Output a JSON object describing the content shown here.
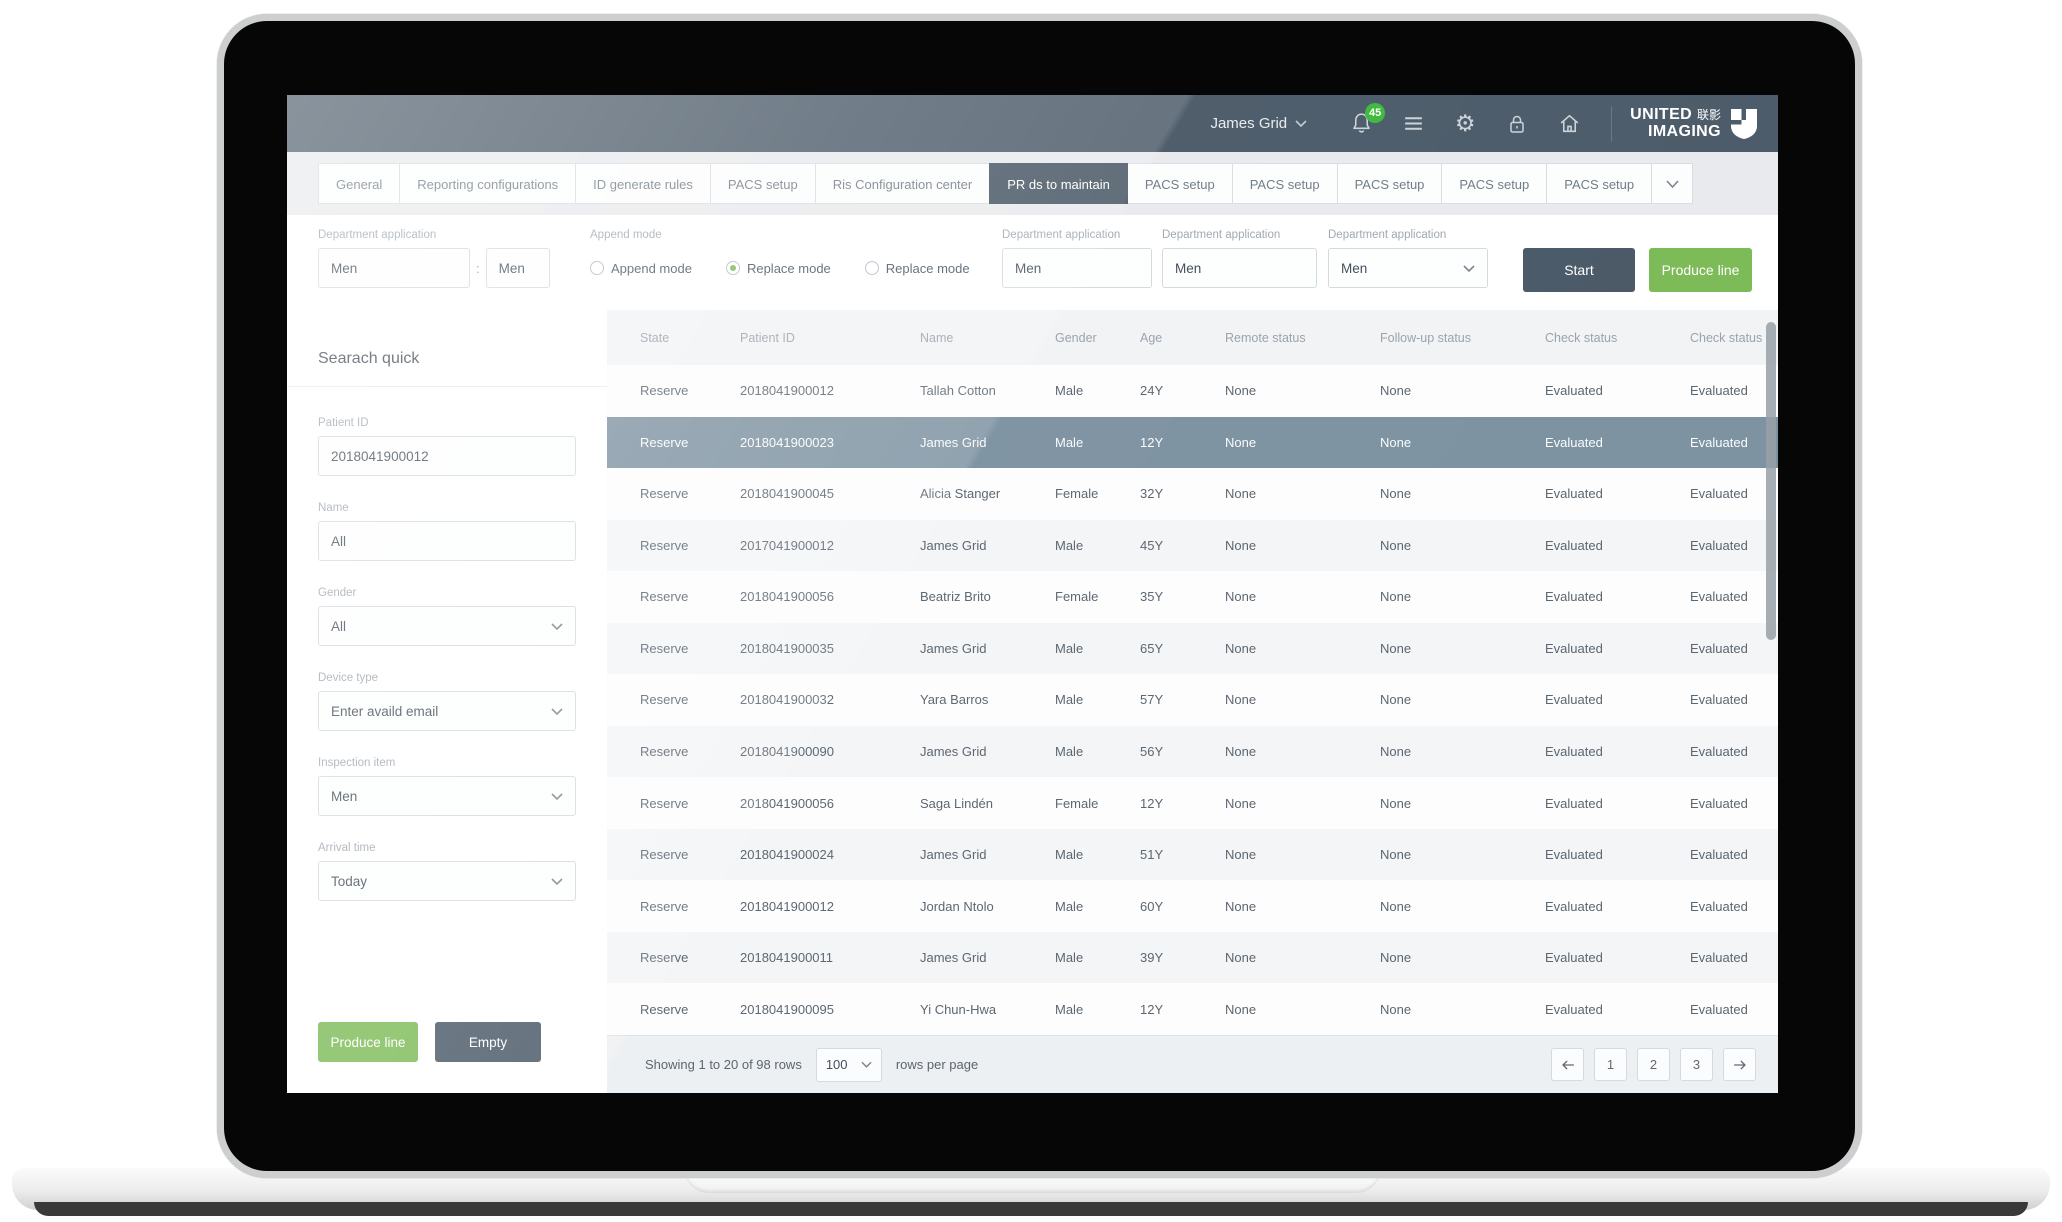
{
  "topbar": {
    "user": "James Grid",
    "notification_count": "45",
    "icons": [
      "chevron-down",
      "bell",
      "hamburger-menu",
      "gear",
      "lock",
      "home"
    ],
    "logo": {
      "line1": "UNITED",
      "cn": "联影",
      "line2": "IMAGING",
      "mark": "shield"
    }
  },
  "tabs": {
    "items": [
      {
        "label": "General",
        "active": false
      },
      {
        "label": "Reporting configurations",
        "active": false
      },
      {
        "label": "ID generate rules",
        "active": false
      },
      {
        "label": "PACS setup",
        "active": false
      },
      {
        "label": "Ris Configuration center",
        "active": false
      },
      {
        "label": "PR ds to maintain",
        "active": true
      },
      {
        "label": "PACS setup",
        "active": false
      },
      {
        "label": "PACS setup",
        "active": false
      },
      {
        "label": "PACS setup",
        "active": false
      },
      {
        "label": "PACS setup",
        "active": false
      },
      {
        "label": "PACS setup",
        "active": false
      }
    ],
    "overflow_icon": "chevron-down"
  },
  "filter_bar": {
    "dept1": {
      "label": "Department application",
      "value1": "Men",
      "separator": ":",
      "value2": "Men"
    },
    "append_mode": {
      "label": "Append mode",
      "options": [
        {
          "label": "Append mode",
          "selected": false
        },
        {
          "label": "Replace mode",
          "selected": true
        },
        {
          "label": "Replace mode",
          "selected": false
        }
      ]
    },
    "dept2": {
      "label": "Department application",
      "value": "Men"
    },
    "dept3": {
      "label": "Department application",
      "value": "Men"
    },
    "dept4": {
      "label": "Department application",
      "value": "Men"
    },
    "start_label": "Start",
    "produce_label": "Produce line"
  },
  "sidebar": {
    "title": "Searach quick",
    "fields": [
      {
        "label": "Patient ID",
        "value": "2018041900012",
        "type": "input"
      },
      {
        "label": "Name",
        "value": "All",
        "type": "input"
      },
      {
        "label": "Gender",
        "value": "All",
        "type": "select"
      },
      {
        "label": "Device type",
        "value": "Enter availd email",
        "type": "select"
      },
      {
        "label": "Inspection item",
        "value": "Men",
        "type": "select"
      },
      {
        "label": "Arrival time",
        "value": "Today",
        "type": "select"
      }
    ],
    "produce_label": "Produce line",
    "empty_label": "Empty"
  },
  "table": {
    "columns": [
      "State",
      "Patient ID",
      "Name",
      "Gender",
      "Age",
      "Remote status",
      "Follow-up status",
      "Check status",
      "Check status"
    ],
    "rows": [
      {
        "selected": false,
        "cells": [
          "Reserve",
          "2018041900012",
          "Tallah Cotton",
          "Male",
          "24Y",
          "None",
          "None",
          "Evaluated",
          "Evaluated"
        ]
      },
      {
        "selected": true,
        "cells": [
          "Reserve",
          "2018041900023",
          "James Grid",
          "Male",
          "12Y",
          "None",
          "None",
          "Evaluated",
          "Evaluated"
        ]
      },
      {
        "selected": false,
        "cells": [
          "Reserve",
          "2018041900045",
          "Alicia Stanger",
          "Female",
          "32Y",
          "None",
          "None",
          "Evaluated",
          "Evaluated"
        ]
      },
      {
        "selected": false,
        "cells": [
          "Reserve",
          "2017041900012",
          "James Grid",
          "Male",
          "45Y",
          "None",
          "None",
          "Evaluated",
          "Evaluated"
        ]
      },
      {
        "selected": false,
        "cells": [
          "Reserve",
          "2018041900056",
          "Beatriz Brito",
          "Female",
          "35Y",
          "None",
          "None",
          "Evaluated",
          "Evaluated"
        ]
      },
      {
        "selected": false,
        "cells": [
          "Reserve",
          "2018041900035",
          "James Grid",
          "Male",
          "65Y",
          "None",
          "None",
          "Evaluated",
          "Evaluated"
        ]
      },
      {
        "selected": false,
        "cells": [
          "Reserve",
          "2018041900032",
          "Yara Barros",
          "Male",
          "57Y",
          "None",
          "None",
          "Evaluated",
          "Evaluated"
        ]
      },
      {
        "selected": false,
        "cells": [
          "Reserve",
          "2018041900090",
          "James Grid",
          "Male",
          "56Y",
          "None",
          "None",
          "Evaluated",
          "Evaluated"
        ]
      },
      {
        "selected": false,
        "cells": [
          "Reserve",
          "2018041900056",
          "Saga Lindén",
          "Female",
          "12Y",
          "None",
          "None",
          "Evaluated",
          "Evaluated"
        ]
      },
      {
        "selected": false,
        "cells": [
          "Reserve",
          "2018041900024",
          "James Grid",
          "Male",
          "51Y",
          "None",
          "None",
          "Evaluated",
          "Evaluated"
        ]
      },
      {
        "selected": false,
        "cells": [
          "Reserve",
          "2018041900012",
          "Jordan Ntolo",
          "Male",
          "60Y",
          "None",
          "None",
          "Evaluated",
          "Evaluated"
        ]
      },
      {
        "selected": false,
        "cells": [
          "Reserve",
          "2018041900011",
          "James Grid",
          "Male",
          "39Y",
          "None",
          "None",
          "Evaluated",
          "Evaluated"
        ]
      },
      {
        "selected": false,
        "cells": [
          "Reserve",
          "2018041900095",
          "Yi Chun-Hwa",
          "Male",
          "12Y",
          "None",
          "None",
          "Evaluated",
          "Evaluated"
        ]
      }
    ],
    "footer": {
      "showing": "Showing 1 to 20 of 98 rows",
      "page_size": "100",
      "rows_per_page": "rows per page",
      "pages": [
        "1",
        "2",
        "3"
      ],
      "prev_icon": "arrow-left",
      "next_icon": "arrow-right"
    }
  },
  "colors": {
    "topbar": "#4d5c6a",
    "active_tab": "#475663",
    "accent_green": "#7dbb58",
    "badge_green": "#3eba3e",
    "selected_row": "#7e93a2"
  }
}
